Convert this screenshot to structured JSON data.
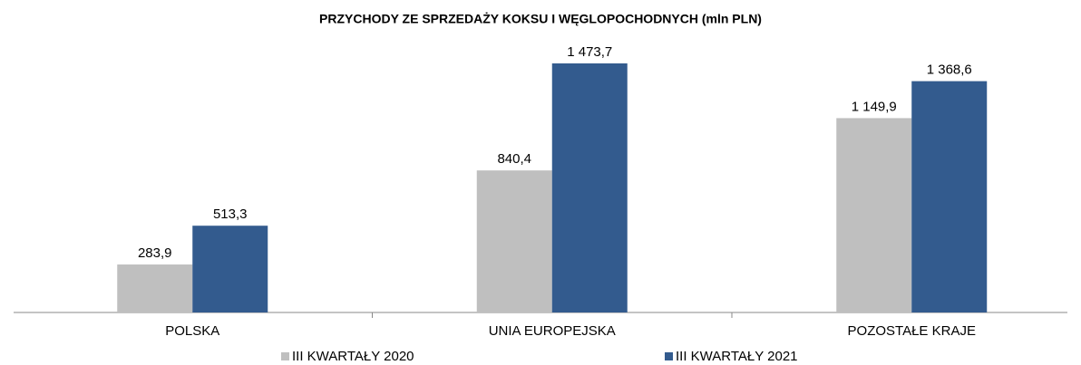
{
  "chart_data": {
    "type": "bar",
    "title": "PRZYCHODY  ZE SPRZEDAŻY KOKSU I WĘGLOPOCHODNYCH (mln PLN)",
    "categories": [
      "POLSKA",
      "UNIA EUROPEJSKA",
      "POZOSTAŁE KRAJE"
    ],
    "series": [
      {
        "name": "III KWARTAŁY 2020",
        "color": "#bfbfbf",
        "values": [
          283.9,
          840.4,
          1149.9
        ],
        "value_labels": [
          "283,9",
          "840,4",
          "1 149,9"
        ]
      },
      {
        "name": "III KWARTAŁY 2021",
        "color": "#335b8e",
        "values": [
          513.3,
          1473.7,
          1368.6
        ],
        "value_labels": [
          "513,3",
          "1 473,7",
          "1 368,6"
        ]
      }
    ]
  }
}
